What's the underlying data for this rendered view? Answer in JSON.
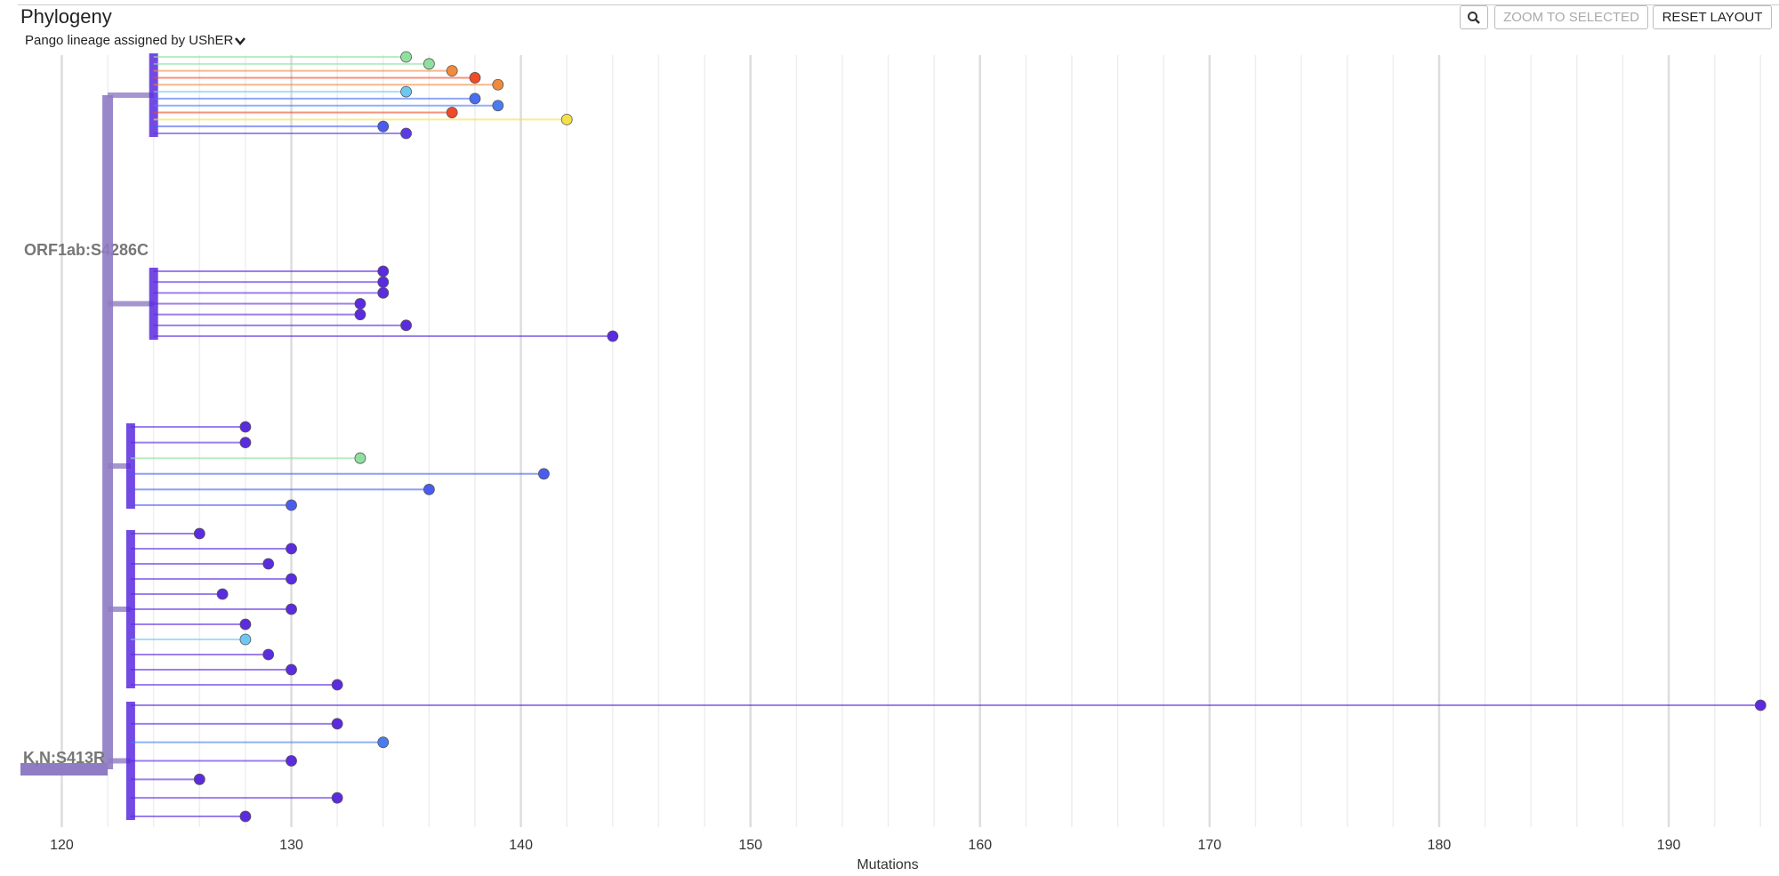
{
  "header": {
    "title": "Phylogeny",
    "color_by": "Pango lineage assigned by UShER",
    "buttons": [
      "ZOOM TO SELECTED",
      "RESET LAYOUT"
    ]
  },
  "chart_data": {
    "type": "tree",
    "xlabel": "Mutations",
    "xlim": [
      118.2,
      194.3
    ],
    "xticks": [
      120,
      130,
      140,
      150,
      160,
      170,
      180,
      190
    ],
    "minor_xticks": [
      122,
      124,
      126,
      128,
      132,
      134,
      136,
      138,
      142,
      144,
      146,
      148,
      152,
      154,
      156,
      158,
      162,
      164,
      166,
      168,
      172,
      174,
      176,
      178,
      182,
      184,
      186,
      188,
      192,
      194
    ],
    "root": {
      "label": "K,N:S413R",
      "mutations": 122,
      "color": "#8f7cc4"
    },
    "clades": [
      {
        "root": 124,
        "tips": [
          {
            "mutations": 135,
            "color": "#8fe0a0"
          },
          {
            "mutations": 136,
            "color": "#8fe0a0"
          },
          {
            "mutations": 137,
            "color": "#f08a3c"
          },
          {
            "mutations": 138,
            "color": "#f04a2a"
          },
          {
            "mutations": 139,
            "color": "#f08a3c"
          },
          {
            "mutations": 135,
            "color": "#6ec7f0"
          },
          {
            "mutations": 138,
            "color": "#4a6cf0"
          },
          {
            "mutations": 139,
            "color": "#4a7cf0"
          },
          {
            "mutations": 137,
            "color": "#f04a2a"
          },
          {
            "mutations": 142,
            "color": "#f5e04a"
          },
          {
            "mutations": 134,
            "color": "#4a5cf0"
          },
          {
            "mutations": 135,
            "color": "#5b3ae6"
          }
        ]
      },
      {
        "label": "ORF1ab:S4286C",
        "root": 124,
        "tips": [
          {
            "mutations": 134,
            "color": "#5b2be0"
          },
          {
            "mutations": 134,
            "color": "#5b2be0"
          },
          {
            "mutations": 134,
            "color": "#5b2be0"
          },
          {
            "mutations": 133,
            "color": "#5b2be0"
          },
          {
            "mutations": 133,
            "color": "#5b2be0"
          },
          {
            "mutations": 135,
            "color": "#5b2be0"
          },
          {
            "mutations": 144,
            "color": "#5b2be0"
          }
        ]
      },
      {
        "root": 123,
        "tips": [
          {
            "mutations": 128,
            "color": "#5b2be0"
          },
          {
            "mutations": 128,
            "color": "#5b2be0"
          },
          {
            "mutations": 133,
            "color": "#8fe0a0"
          },
          {
            "mutations": 141,
            "color": "#4a5cf0"
          },
          {
            "mutations": 136,
            "color": "#4a5cf0"
          },
          {
            "mutations": 130,
            "color": "#4a5cf0"
          }
        ]
      },
      {
        "root": 123,
        "tips": [
          {
            "mutations": 126,
            "color": "#5b2be0"
          },
          {
            "mutations": 130,
            "color": "#5b2be0"
          },
          {
            "mutations": 129,
            "color": "#5b2be0"
          },
          {
            "mutations": 130,
            "color": "#5b2be0"
          },
          {
            "mutations": 127,
            "color": "#5b2be0"
          },
          {
            "mutations": 130,
            "color": "#5b2be0"
          },
          {
            "mutations": 128,
            "color": "#5b2be0"
          },
          {
            "mutations": 128,
            "color": "#6ec7f0"
          },
          {
            "mutations": 129,
            "color": "#5b2be0"
          },
          {
            "mutations": 130,
            "color": "#5b2be0"
          },
          {
            "mutations": 132,
            "color": "#5b2be0"
          }
        ]
      },
      {
        "root": 123,
        "tips": [
          {
            "mutations": 194,
            "color": "#5b2be0"
          },
          {
            "mutations": 132,
            "color": "#5b2be0"
          },
          {
            "mutations": 134,
            "color": "#4a7cf0"
          },
          {
            "mutations": 130,
            "color": "#5b2be0"
          },
          {
            "mutations": 126,
            "color": "#5b2be0"
          },
          {
            "mutations": 132,
            "color": "#5b2be0"
          },
          {
            "mutations": 128,
            "color": "#5b2be0"
          }
        ]
      }
    ]
  }
}
